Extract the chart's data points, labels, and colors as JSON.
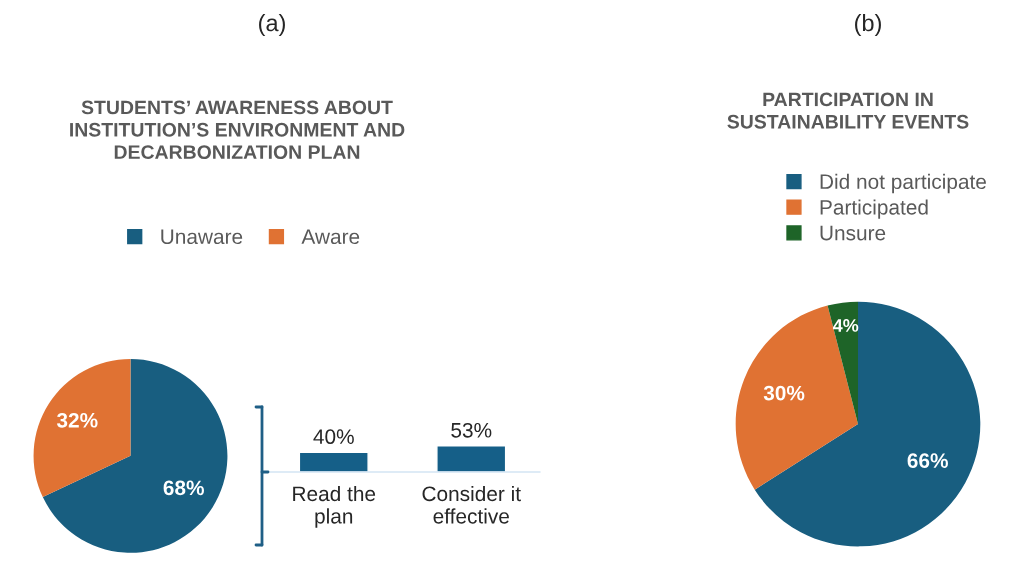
{
  "chart_data": [
    {
      "type": "pie",
      "title": "STUDENTS’ AWARENESS ABOUT\nINSTITUTION’S ENVIRONMENT AND\nDECARBONIZATION PLAN",
      "annotations": [
        "(a)"
      ],
      "categories": [
        "Unaware",
        "Aware"
      ],
      "values": [
        68,
        32
      ],
      "colors": [
        "#185e80",
        "#e07233"
      ],
      "value_labels": [
        "68%",
        "32%"
      ],
      "legend": "top"
    },
    {
      "type": "bar",
      "categories": [
        "Read the\nplan",
        "Consider it\neffective"
      ],
      "values": [
        40,
        53
      ],
      "color": "#155f88",
      "value_labels": [
        "40%",
        "53%"
      ]
    },
    {
      "type": "pie",
      "title": "PARTICIPATION IN\nSUSTAINABILITY EVENTS",
      "annotations": [
        "(b)"
      ],
      "categories": [
        "Did not participate",
        "Participated",
        "Unsure"
      ],
      "values": [
        66,
        30,
        4
      ],
      "colors": [
        "#185e80",
        "#e07233",
        "#1e6428"
      ],
      "value_labels": [
        "66%",
        "30%",
        "4%"
      ],
      "legend": "top"
    }
  ]
}
